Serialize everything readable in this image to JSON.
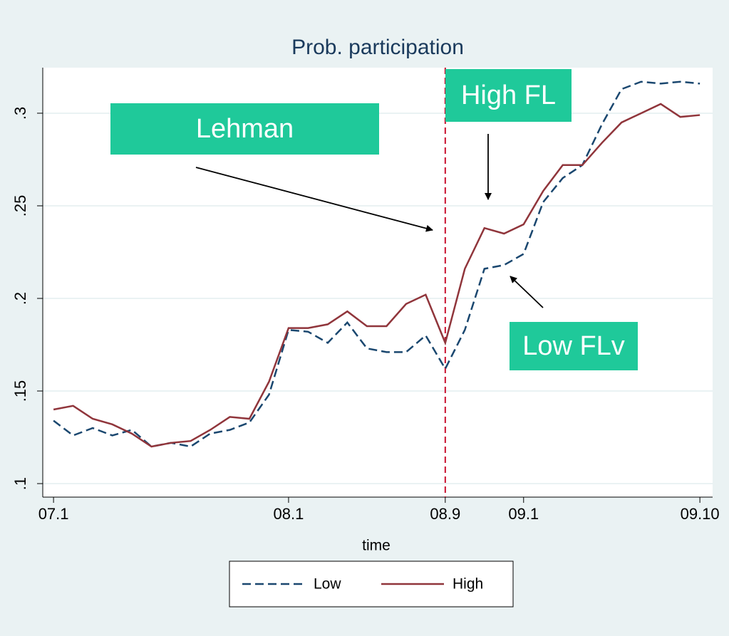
{
  "chart_data": {
    "type": "line",
    "title": "Prob. participation",
    "x_label": "time",
    "x": [
      0,
      1,
      2,
      3,
      4,
      5,
      6,
      7,
      8,
      9,
      10,
      11,
      12,
      13,
      14,
      15,
      16,
      17,
      18,
      19,
      20,
      21,
      22,
      23,
      24,
      25,
      26,
      27,
      28,
      29,
      30,
      31,
      32,
      33
    ],
    "series": [
      {
        "name": "Low",
        "color": "#1a476f",
        "dash": true,
        "values": [
          0.134,
          0.126,
          0.13,
          0.126,
          0.129,
          0.12,
          0.122,
          0.12,
          0.127,
          0.129,
          0.133,
          0.148,
          0.183,
          0.182,
          0.176,
          0.187,
          0.173,
          0.171,
          0.171,
          0.18,
          0.162,
          0.183,
          0.216,
          0.218,
          0.224,
          0.252,
          0.265,
          0.272,
          0.294,
          0.313,
          0.317,
          0.316,
          0.317,
          0.316
        ]
      },
      {
        "name": "High",
        "color": "#90353b",
        "dash": false,
        "values": [
          0.14,
          0.142,
          0.135,
          0.132,
          0.127,
          0.12,
          0.122,
          0.123,
          0.129,
          0.136,
          0.135,
          0.155,
          0.184,
          0.184,
          0.186,
          0.193,
          0.185,
          0.185,
          0.197,
          0.202,
          0.176,
          0.216,
          0.238,
          0.235,
          0.24,
          0.258,
          0.272,
          0.272,
          0.284,
          0.295,
          0.3,
          0.305,
          0.298,
          0.299
        ]
      }
    ],
    "xlim": [
      -0.55,
      33.65
    ],
    "ylim": [
      0.0927,
      0.3246
    ],
    "xticks": [
      {
        "value": 0,
        "label": "07.1"
      },
      {
        "value": 12,
        "label": "08.1"
      },
      {
        "value": 20,
        "label": "08.9"
      },
      {
        "value": 24,
        "label": "09.1"
      },
      {
        "value": 33,
        "label": "09.10"
      }
    ],
    "yticks": [
      {
        "value": 0.1,
        "label": ".1"
      },
      {
        "value": 0.15,
        "label": ".15"
      },
      {
        "value": 0.2,
        "label": ".2"
      },
      {
        "value": 0.25,
        "label": ".25"
      },
      {
        "value": 0.3,
        "label": ".3"
      }
    ],
    "xline": 20,
    "xline_color": "#c8102e",
    "grid": true,
    "annotations": [
      {
        "text": "Lehman"
      },
      {
        "text": "High FL"
      },
      {
        "text": "Low FLv"
      }
    ],
    "annotation_color": "#1fc99a"
  }
}
